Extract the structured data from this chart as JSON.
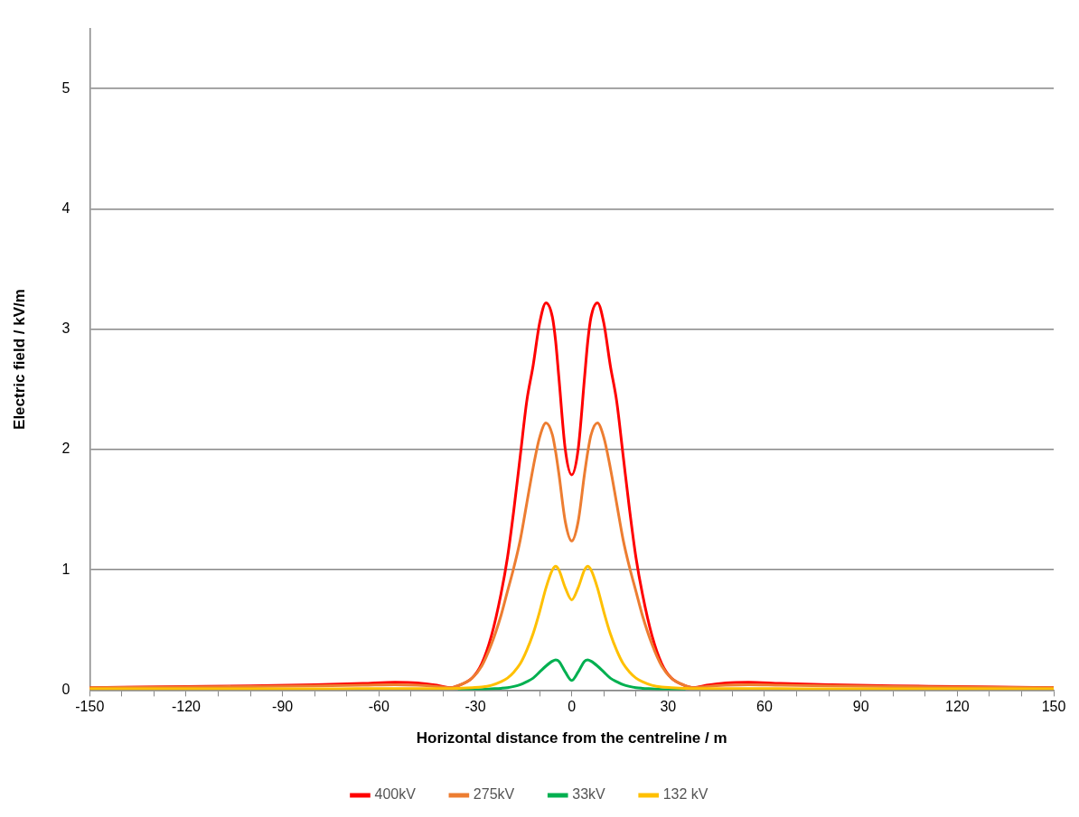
{
  "chart_data": {
    "type": "line",
    "xlabel": "Horizontal distance from the centreline / m",
    "ylabel": "Electric field / kV/m",
    "x": [
      -150,
      -120,
      -100,
      -80,
      -65,
      -55,
      -48,
      -42,
      -38,
      -35,
      -31,
      -28,
      -25,
      -22,
      -20,
      -18,
      -16,
      -14,
      -12,
      -10,
      -8,
      -6,
      -5,
      -4,
      -2,
      0,
      2,
      4,
      5,
      6,
      8,
      10,
      12,
      14,
      16,
      18,
      20,
      22,
      25,
      28,
      31,
      35,
      38,
      42,
      48,
      55,
      65,
      80,
      100,
      120,
      150
    ],
    "series": [
      {
        "name": "400kV",
        "color": "#ff0000",
        "values": [
          0.02,
          0.03,
          0.035,
          0.045,
          0.055,
          0.065,
          0.06,
          0.04,
          0.02,
          0.04,
          0.1,
          0.22,
          0.45,
          0.8,
          1.1,
          1.5,
          1.95,
          2.4,
          2.7,
          3.05,
          3.22,
          3.1,
          2.9,
          2.6,
          2.0,
          1.79,
          2.0,
          2.6,
          2.9,
          3.1,
          3.22,
          3.05,
          2.7,
          2.4,
          1.95,
          1.5,
          1.1,
          0.8,
          0.45,
          0.22,
          0.1,
          0.04,
          0.02,
          0.04,
          0.06,
          0.065,
          0.055,
          0.045,
          0.035,
          0.03,
          0.02
        ]
      },
      {
        "name": "275kV",
        "color": "#ed7d31",
        "values": [
          0.02,
          0.025,
          0.03,
          0.035,
          0.04,
          0.045,
          0.04,
          0.03,
          0.02,
          0.04,
          0.1,
          0.2,
          0.38,
          0.62,
          0.82,
          1.02,
          1.25,
          1.55,
          1.85,
          2.1,
          2.22,
          2.12,
          1.98,
          1.8,
          1.4,
          1.24,
          1.4,
          1.8,
          1.98,
          2.12,
          2.22,
          2.1,
          1.85,
          1.55,
          1.25,
          1.02,
          0.82,
          0.62,
          0.38,
          0.2,
          0.1,
          0.04,
          0.02,
          0.03,
          0.04,
          0.045,
          0.04,
          0.035,
          0.03,
          0.025,
          0.02
        ]
      },
      {
        "name": "33kV",
        "color": "#00b050",
        "values": [
          null,
          null,
          null,
          null,
          null,
          null,
          null,
          null,
          null,
          0.002,
          0.003,
          0.005,
          0.01,
          0.015,
          0.02,
          0.03,
          0.045,
          0.07,
          0.1,
          0.15,
          0.2,
          0.24,
          0.25,
          0.24,
          0.15,
          0.08,
          0.15,
          0.24,
          0.25,
          0.24,
          0.2,
          0.15,
          0.1,
          0.07,
          0.045,
          0.03,
          0.02,
          0.015,
          0.01,
          0.005,
          0.003,
          0.002,
          null,
          null,
          null,
          null,
          null,
          null,
          null,
          null,
          null
        ]
      },
      {
        "name": "132 kV",
        "color": "#ffc000",
        "values": [
          0.01,
          0.01,
          0.01,
          0.01,
          0.012,
          0.012,
          0.012,
          0.012,
          0.012,
          0.015,
          0.02,
          0.025,
          0.04,
          0.07,
          0.1,
          0.15,
          0.22,
          0.33,
          0.47,
          0.65,
          0.85,
          1.0,
          1.03,
          1.0,
          0.85,
          0.75,
          0.85,
          1.0,
          1.03,
          1.0,
          0.85,
          0.65,
          0.47,
          0.33,
          0.22,
          0.15,
          0.1,
          0.07,
          0.04,
          0.025,
          0.02,
          0.015,
          0.012,
          0.012,
          0.012,
          0.012,
          0.012,
          0.01,
          0.01,
          0.01,
          0.01
        ]
      }
    ],
    "xlim": [
      -150,
      150
    ],
    "xticks": [
      -150,
      {
        "value": -140,
        "label": null
      },
      {
        "value": -130,
        "label": null
      },
      -120,
      {
        "value": -110,
        "label": null
      },
      {
        "value": -100,
        "label": null
      },
      -90,
      {
        "value": -80,
        "label": null
      },
      {
        "value": -70,
        "label": null
      },
      -60,
      {
        "value": -50,
        "label": null
      },
      {
        "value": -40,
        "label": null
      },
      -30,
      {
        "value": -20,
        "label": null
      },
      {
        "value": -10,
        "label": null
      },
      0,
      {
        "value": 10,
        "label": null
      },
      {
        "value": 20,
        "label": null
      },
      30,
      {
        "value": 40,
        "label": null
      },
      {
        "value": 50,
        "label": null
      },
      60,
      {
        "value": 70,
        "label": null
      },
      {
        "value": 80,
        "label": null
      },
      90,
      {
        "value": 100,
        "label": null
      },
      {
        "value": 110,
        "label": null
      },
      120,
      {
        "value": 130,
        "label": null
      },
      {
        "value": 140,
        "label": null
      },
      150
    ],
    "ylim": [
      0,
      5.5
    ],
    "yticks": [
      0,
      1,
      2,
      3,
      4,
      5
    ],
    "grid": "y",
    "legend": "bottom",
    "marker": "none",
    "line_style": "solid"
  }
}
